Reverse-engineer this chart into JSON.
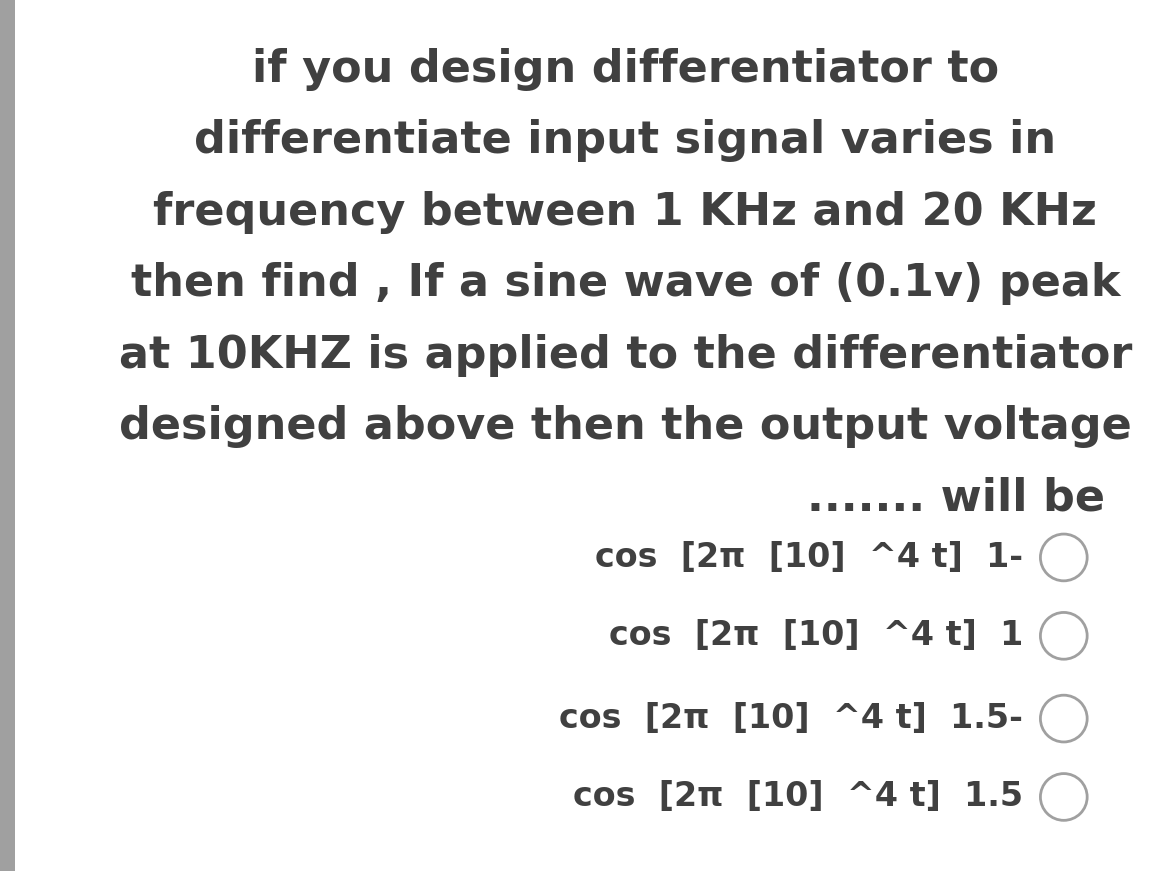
{
  "background_color": "#ffffff",
  "left_bar_color": "#a0a0a0",
  "text_color": "#404040",
  "option_text_color": "#a0a0a0",
  "title_lines": [
    "if you design differentiator to",
    "differentiate input signal varies in",
    "frequency between 1 KHz and 20 KHz",
    "then find , If a sine wave of (0.1v) peak",
    "at 10KHZ is applied to the differentiator",
    "designed above then the output voltage",
    "....... will be"
  ],
  "title_align": [
    "center",
    "center",
    "center",
    "center",
    "center",
    "center",
    "right"
  ],
  "options": [
    {
      "text": "cos  [2π  [10]  ^4 t]  1-",
      "suffix": "O"
    },
    {
      "text": "cos  [2π  [10]  ^4 t]  1",
      "suffix": "O"
    },
    {
      "text": "cos  [2π  [10]  ^4 t]  1.5-",
      "suffix": "O"
    },
    {
      "text": "cos  [2π  [10]  ^4 t]  1.5",
      "suffix": "O"
    }
  ],
  "title_fontsize": 32,
  "option_fontsize": 24,
  "fig_width": 11.69,
  "fig_height": 8.71,
  "dpi": 100
}
